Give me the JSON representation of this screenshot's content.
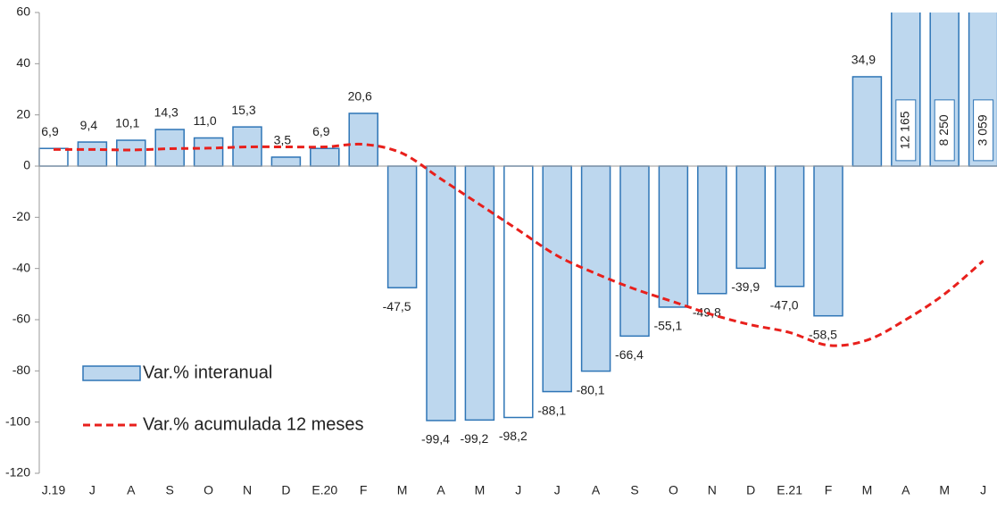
{
  "chart_data": {
    "type": "bar",
    "categories": [
      "J.19",
      "J",
      "A",
      "S",
      "O",
      "N",
      "D",
      "E.20",
      "F",
      "M",
      "A",
      "M",
      "J",
      "J",
      "A",
      "S",
      "O",
      "N",
      "D",
      "E.21",
      "F",
      "M",
      "A",
      "M",
      "J"
    ],
    "series": [
      {
        "name": "Var.% interanual",
        "type": "bar",
        "color": "#bdd7ee",
        "edge_color": "#2e75b6",
        "bar_colors": [
          "#ffffff",
          "#bdd7ee",
          "#bdd7ee",
          "#bdd7ee",
          "#bdd7ee",
          "#bdd7ee",
          "#bdd7ee",
          "#bdd7ee",
          "#bdd7ee",
          "#bdd7ee",
          "#bdd7ee",
          "#bdd7ee",
          "#ffffff",
          "#bdd7ee",
          "#bdd7ee",
          "#bdd7ee",
          "#bdd7ee",
          "#bdd7ee",
          "#bdd7ee",
          "#bdd7ee",
          "#bdd7ee",
          "#bdd7ee",
          "#bdd7ee",
          "#bdd7ee",
          "#bdd7ee"
        ],
        "values": [
          6.9,
          9.4,
          10.1,
          14.3,
          11.0,
          15.3,
          3.5,
          6.9,
          20.6,
          -47.5,
          -99.4,
          -99.2,
          -98.2,
          -88.1,
          -80.1,
          -66.4,
          -55.1,
          -49.8,
          -39.9,
          -47.0,
          -58.5,
          34.9,
          12165,
          8250,
          3059
        ],
        "value_labels": [
          "6,9",
          "9,4",
          "10,1",
          "14,3",
          "11,0",
          "15,3",
          "3,5",
          "6,9",
          "20,6",
          "-47,5",
          "-99,4",
          "-99,2",
          "-98,2",
          "-88,1",
          "-80,1",
          "-66,4",
          "-55,1",
          "-49,8",
          "-39,9",
          "-47,0",
          "-58,5",
          "34,9",
          "12 165",
          "8 250",
          "3 059"
        ]
      },
      {
        "name": "Var.% acumulada 12 meses",
        "type": "line",
        "color": "#e8201c",
        "dashed": true,
        "values": [
          6.5,
          6.5,
          6.3,
          6.8,
          7.0,
          7.5,
          7.5,
          7.5,
          8.5,
          5,
          -5,
          -15,
          -25,
          -35,
          -42,
          -48,
          -53,
          -58,
          -62,
          -65,
          -70,
          -68,
          -60,
          -50,
          -37
        ]
      }
    ],
    "ylim": [
      -120,
      60
    ],
    "yticks": [
      -120,
      -100,
      -80,
      -60,
      -40,
      -20,
      0,
      20,
      40,
      60
    ],
    "grid": false,
    "legend": "lower left"
  }
}
